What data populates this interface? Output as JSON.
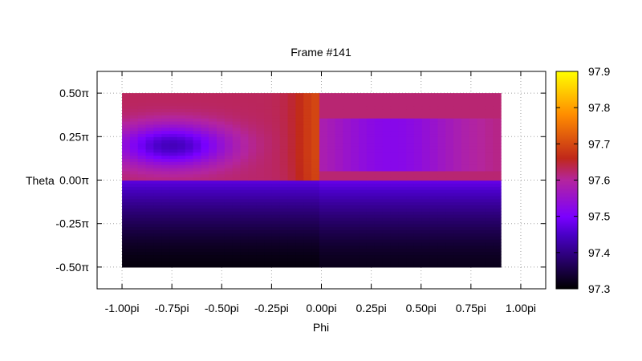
{
  "chart_data": {
    "type": "heatmap",
    "title": "Frame #141",
    "xlabel": "Phi",
    "ylabel": "Theta",
    "x_range": [
      -1.125,
      1.125
    ],
    "y_range": [
      -0.625,
      0.625
    ],
    "x_ticks": [
      {
        "value": -1.0,
        "label": "-1.00pi"
      },
      {
        "value": -0.75,
        "label": "-0.75pi"
      },
      {
        "value": -0.5,
        "label": "-0.50pi"
      },
      {
        "value": -0.25,
        "label": "-0.25pi"
      },
      {
        "value": 0.0,
        "label": "0.00pi"
      },
      {
        "value": 0.25,
        "label": "0.25pi"
      },
      {
        "value": 0.5,
        "label": "0.50pi"
      },
      {
        "value": 0.75,
        "label": "0.75pi"
      },
      {
        "value": 1.0,
        "label": "1.00pi"
      }
    ],
    "y_ticks": [
      {
        "value": 0.5,
        "label": "0.50π"
      },
      {
        "value": 0.25,
        "label": "0.25π"
      },
      {
        "value": 0.0,
        "label": "0.00π"
      },
      {
        "value": -0.25,
        "label": "-0.25π"
      },
      {
        "value": -0.5,
        "label": "-0.50π"
      }
    ],
    "grid": true,
    "data_extent": {
      "phi": [
        -1.0,
        0.9
      ],
      "theta": [
        -0.5,
        0.5
      ]
    },
    "colorbar": {
      "range": [
        97.3,
        97.9
      ],
      "ticks": [
        "97.3",
        "97.4",
        "97.5",
        "97.6",
        "97.7",
        "97.8",
        "97.9"
      ],
      "palette": "black-purple-red-orange-yellow"
    }
  }
}
